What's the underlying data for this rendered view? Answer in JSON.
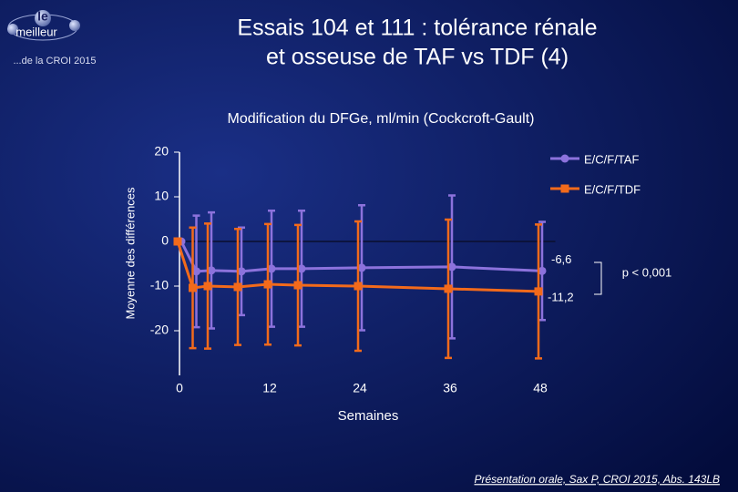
{
  "header": {
    "logo_top": "le",
    "logo_main": "meilleur",
    "logo_sub": "...de la CROI 2015",
    "title_lines": [
      "Essais 104 et 111 : tolérance rénale",
      "et osseuse de TAF vs TDF (4)"
    ]
  },
  "footnote": "Présentation orale, Sax P, CROI 2015, Abs. 143LB",
  "chart_data": {
    "type": "line",
    "title": "Modification du DFGe, ml/min (Cockcroft-Gault)",
    "x_label": "Semaines",
    "y_label": "Moyenne des différences",
    "x": [
      0,
      2,
      4,
      8,
      12,
      16,
      24,
      36,
      48
    ],
    "series": [
      {
        "name": "E/C/F/TAF",
        "color": "#8c72dc",
        "marker": "circle",
        "values": [
          0,
          -6.7,
          -6.5,
          -6.7,
          -6.1,
          -6.1,
          -5.9,
          -5.7,
          -6.6
        ],
        "errors": [
          0,
          12.5,
          13,
          9.8,
          13,
          13,
          14,
          16,
          11
        ],
        "value_labels": [
          null,
          null,
          null,
          null,
          null,
          null,
          null,
          null,
          "-6,6"
        ]
      },
      {
        "name": "E/C/F/TDF",
        "color": "#f26a1b",
        "marker": "square",
        "values": [
          0,
          -10.4,
          -10,
          -10.2,
          -9.6,
          -9.8,
          -10,
          -10.6,
          -11.2
        ],
        "errors": [
          0,
          13.5,
          14,
          13,
          13.5,
          13.5,
          14.5,
          15.5,
          15
        ],
        "value_labels": [
          null,
          null,
          null,
          null,
          null,
          null,
          null,
          null,
          "-11,2"
        ]
      }
    ],
    "annotation": "p < 0,001",
    "xlim": [
      0,
      56
    ],
    "xticks": [
      0,
      12,
      24,
      36,
      48
    ],
    "ylim": [
      -30,
      20
    ],
    "yticks": [
      -20,
      -10,
      0,
      10,
      20
    ],
    "legend": "top-right"
  }
}
